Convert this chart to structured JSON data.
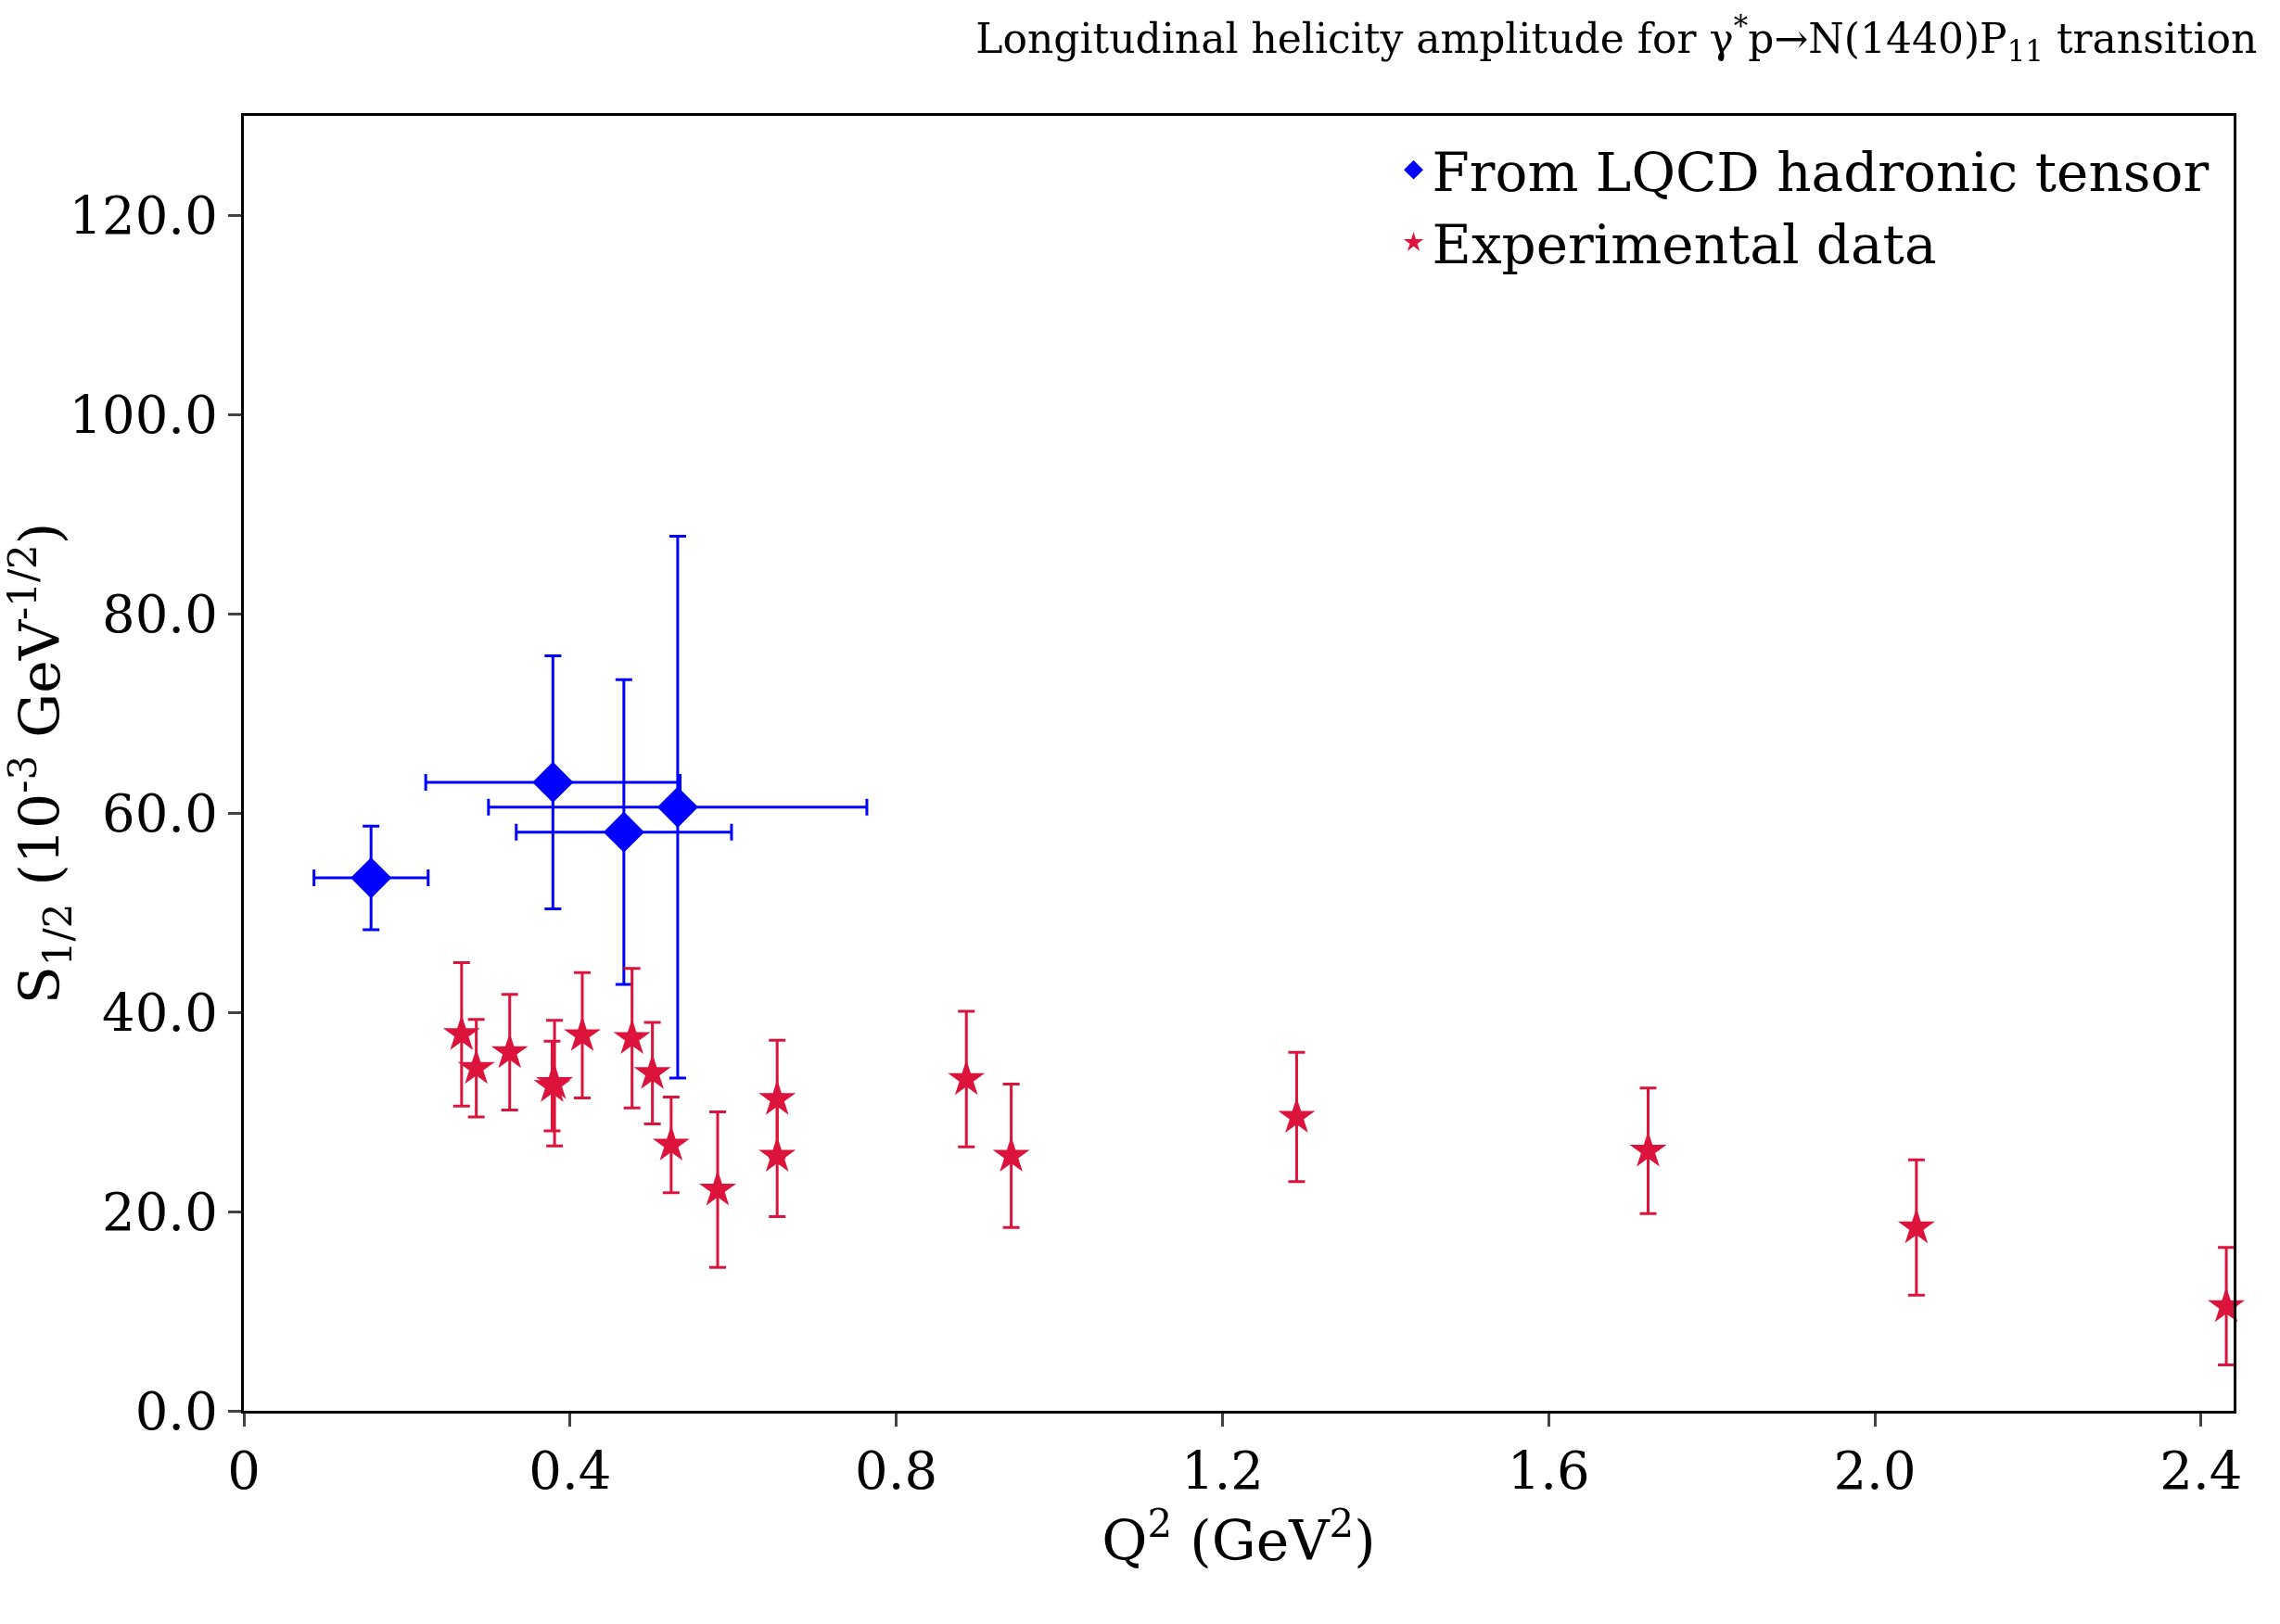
{
  "chart_data": {
    "type": "scatter",
    "title": "Longitudinal helicity amplitude for γ$^{*}$p→N(1440)P$_{11}$ transition",
    "xlabel": "Q$^{2}$ (GeV$^{2}$)",
    "ylabel": "S$_{1/2}$ (10$^{-3}$ GeV$^{-1/2}$)",
    "series": [
      {
        "name": "From LQCD hadronic tensor",
        "color": "#0000ff",
        "marker": "diamond",
        "x": [
          0.156,
          0.379,
          0.466,
          0.532
        ],
        "values": [
          53.5,
          63.1,
          58.1,
          60.6
        ],
        "errors": [
          5.2,
          12.7,
          15.3,
          27.2
        ],
        "xerrors": [
          0.07,
          0.156,
          0.132,
          0.232
        ]
      },
      {
        "name": "Experimental data",
        "color": "#dc143c",
        "marker": "star",
        "x": [
          0.267,
          0.285,
          0.326,
          0.381,
          0.378,
          0.415,
          0.476,
          0.501,
          0.524,
          0.581,
          0.654,
          0.654,
          0.886,
          0.941,
          1.291,
          1.722,
          2.051,
          2.431
        ],
        "values": [
          37.8,
          34.4,
          36.0,
          32.9,
          32.6,
          37.7,
          37.4,
          33.9,
          26.7,
          22.2,
          31.3,
          25.6,
          33.3,
          25.6,
          29.5,
          26.1,
          18.4,
          10.5
        ],
        "errors": [
          7.2,
          4.9,
          5.8,
          6.3,
          4.5,
          6.3,
          7.0,
          5.1,
          4.8,
          7.8,
          5.9,
          6.1,
          6.8,
          7.2,
          6.5,
          6.3,
          6.8,
          5.9
        ]
      }
    ],
    "xlim": [
      0,
      2.44
    ],
    "ylim": [
      0,
      130
    ],
    "xticks": [
      0,
      0.4,
      0.8,
      1.2,
      1.6,
      {
        "value": 2,
        "label": "2.0"
      },
      2.4
    ],
    "yticks": [
      {
        "value": 0,
        "label": "0.0"
      },
      {
        "value": 20,
        "label": "20.0"
      },
      {
        "value": 40,
        "label": "40.0"
      },
      {
        "value": 60,
        "label": "60.0"
      },
      {
        "value": 80,
        "label": "80.0"
      },
      {
        "value": 100,
        "label": "100.0"
      },
      {
        "value": 120,
        "label": "120.0"
      }
    ],
    "grid": false,
    "legend": "top right"
  }
}
